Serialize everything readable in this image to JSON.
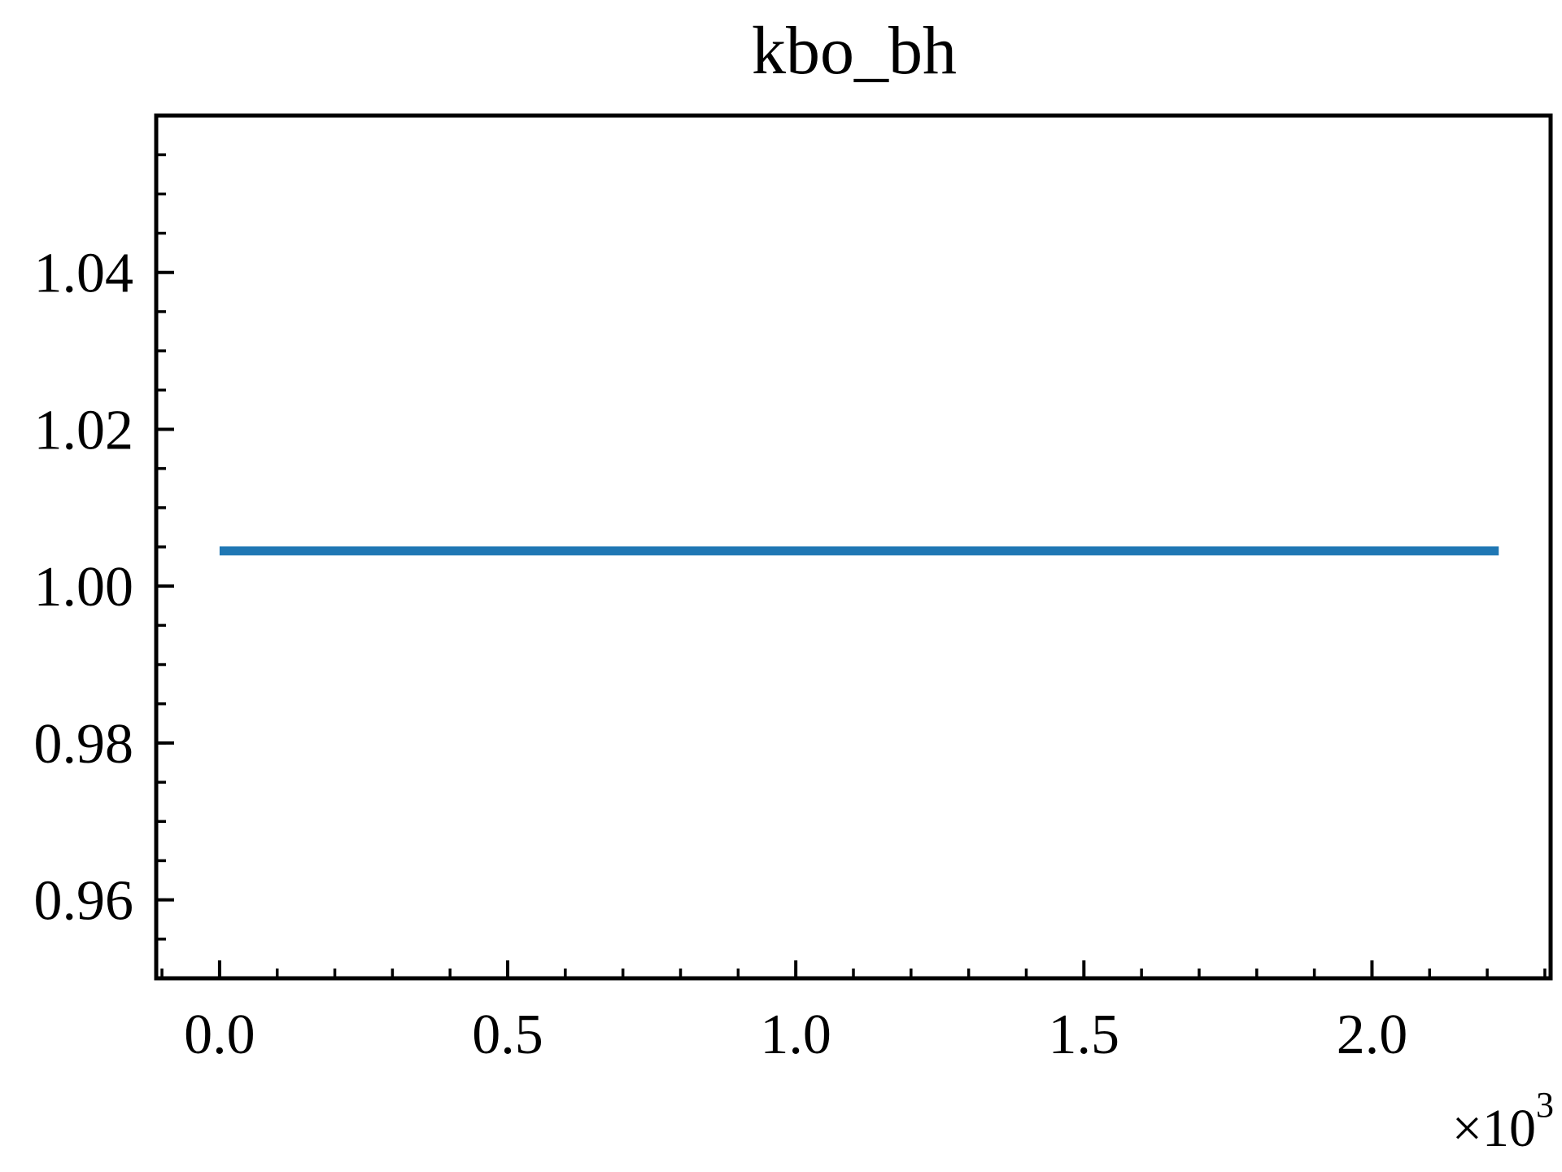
{
  "chart_data": {
    "type": "line",
    "title": "kbo_bh",
    "xlabel": "",
    "ylabel": "",
    "x_offset_label": "×10",
    "x_offset_exponent": "3",
    "xlim": [
      -0.11,
      2.31
    ],
    "ylim": [
      0.95,
      1.06
    ],
    "x_ticks": [
      0.0,
      0.5,
      1.0,
      1.5,
      2.0
    ],
    "x_tick_labels": [
      "0.0",
      "0.5",
      "1.0",
      "1.5",
      "2.0"
    ],
    "x_minor_step": 0.1,
    "y_ticks": [
      0.96,
      0.98,
      1.0,
      1.02,
      1.04
    ],
    "y_tick_labels": [
      "0.96",
      "0.98",
      "1.00",
      "1.02",
      "1.04"
    ],
    "y_minor_step": 0.005,
    "grid": false,
    "tick_direction": "in",
    "series": [
      {
        "color": "#1f77b4",
        "x": [
          0.0,
          2.22
        ],
        "y": [
          1.0045,
          1.0045
        ]
      }
    ]
  }
}
